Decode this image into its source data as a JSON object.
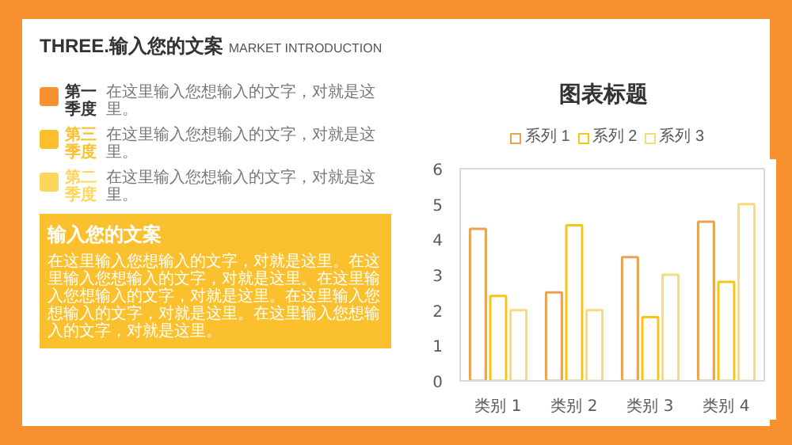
{
  "chart_data": {
    "type": "bar",
    "title": "图表标题",
    "categories": [
      "类别 1",
      "类别 2",
      "类别 3",
      "类别 4"
    ],
    "series": [
      {
        "name": "系列 1",
        "color": "#e9a24f",
        "values": [
          4.3,
          2.5,
          3.5,
          4.5
        ]
      },
      {
        "name": "系列 2",
        "color": "#f5c518",
        "values": [
          2.4,
          4.4,
          1.8,
          2.8
        ]
      },
      {
        "name": "系列 3",
        "color": "#f7da7a",
        "values": [
          2,
          2,
          3,
          5
        ]
      }
    ],
    "ylim": [
      0,
      6
    ],
    "yticks": [
      0,
      1,
      2,
      3,
      4,
      5,
      6
    ],
    "grid": false,
    "legend": "top",
    "annotations": [
      "THREE.输入您的文案",
      "MARKET INTRODUCTION",
      "第一季度",
      "在这里输入您想输入的文字，对就是这里。",
      "第三季度",
      "在这里输入您想输入的文字，对就是这里。",
      "第二季度",
      "在这里输入您想输入的文字，对就是这里。",
      "输入您的文案",
      "在这里输入您想输入的文字，对就是这里。在这里输入您想输入的文字，对就是这里。在这里输入您想输入的文字，对就是这里。在这里输入您想输入的文字，对就是这里。在这里输入您想输入的文字，对就是这里。"
    ]
  }
}
